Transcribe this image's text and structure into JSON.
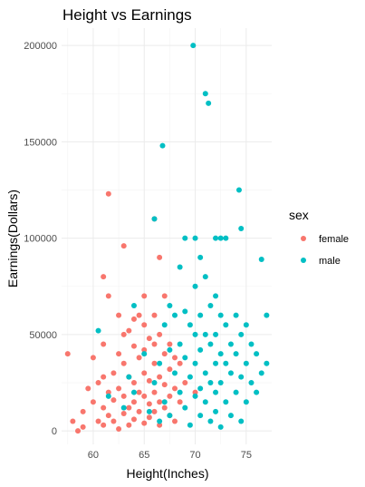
{
  "chart_data": {
    "type": "scatter",
    "title": "Height vs Earnings",
    "xlabel": "Height(Inches)",
    "ylabel": "Earnings(Dollars)",
    "xlim": [
      56.9,
      77.5
    ],
    "ylim": [
      -7000,
      209000
    ],
    "xticks": [
      60,
      65,
      70,
      75
    ],
    "yticks": [
      0,
      50000,
      100000,
      150000,
      200000
    ],
    "xtick_labels": [
      "60",
      "65",
      "70",
      "75"
    ],
    "ytick_labels": [
      "0",
      "50000",
      "100000",
      "150000",
      "200000"
    ],
    "grid": true,
    "legend": {
      "title": "sex",
      "position": "right"
    },
    "series": [
      {
        "name": "female",
        "color": "#f8766d",
        "points": [
          [
            57.5,
            40000
          ],
          [
            58,
            5000
          ],
          [
            58.5,
            0
          ],
          [
            59,
            2000
          ],
          [
            59,
            10000
          ],
          [
            59.5,
            22000
          ],
          [
            60,
            15000
          ],
          [
            60,
            38000
          ],
          [
            60.5,
            25000
          ],
          [
            60.5,
            5000
          ],
          [
            61,
            80000
          ],
          [
            61,
            45000
          ],
          [
            61,
            28000
          ],
          [
            61,
            12000
          ],
          [
            61,
            3000
          ],
          [
            61.5,
            123000
          ],
          [
            61.5,
            70000
          ],
          [
            61.5,
            20000
          ],
          [
            61.5,
            8000
          ],
          [
            62,
            30000
          ],
          [
            62,
            16000
          ],
          [
            62,
            5000
          ],
          [
            62.5,
            60000
          ],
          [
            62.5,
            40000
          ],
          [
            62.5,
            22000
          ],
          [
            62.5,
            1000
          ],
          [
            63,
            96000
          ],
          [
            63,
            50000
          ],
          [
            63,
            35000
          ],
          [
            63,
            18000
          ],
          [
            63,
            9000
          ],
          [
            63.5,
            52000
          ],
          [
            63.5,
            28000
          ],
          [
            63.5,
            12000
          ],
          [
            63.5,
            3000
          ],
          [
            64,
            58000
          ],
          [
            64,
            44000
          ],
          [
            64,
            25000
          ],
          [
            64,
            15000
          ],
          [
            64,
            6000
          ],
          [
            64.5,
            60000
          ],
          [
            64.5,
            38000
          ],
          [
            64.5,
            20000
          ],
          [
            64.5,
            10000
          ],
          [
            65,
            70000
          ],
          [
            65,
            55000
          ],
          [
            65,
            42000
          ],
          [
            65,
            30000
          ],
          [
            65,
            18000
          ],
          [
            65,
            4000
          ],
          [
            65.5,
            48000
          ],
          [
            65.5,
            26000
          ],
          [
            65.5,
            14000
          ],
          [
            65.5,
            7000
          ],
          [
            66,
            110000
          ],
          [
            66,
            60000
          ],
          [
            66,
            45000
          ],
          [
            66,
            35000
          ],
          [
            66,
            20000
          ],
          [
            66,
            10000
          ],
          [
            66.5,
            90000
          ],
          [
            66.5,
            50000
          ],
          [
            66.5,
            28000
          ],
          [
            66.5,
            15000
          ],
          [
            66.5,
            3000
          ],
          [
            67,
            70000
          ],
          [
            67,
            40000
          ],
          [
            67,
            24000
          ],
          [
            67,
            12000
          ],
          [
            67.5,
            45000
          ],
          [
            67.5,
            32000
          ],
          [
            67.5,
            18000
          ],
          [
            67.5,
            8000
          ],
          [
            68,
            38000
          ],
          [
            68,
            22000
          ],
          [
            68,
            5000
          ],
          [
            68.5,
            35000
          ],
          [
            68.5,
            15000
          ],
          [
            69,
            25000
          ],
          [
            70,
            20000
          ]
        ]
      },
      {
        "name": "male",
        "color": "#00bfc4",
        "points": [
          [
            60.5,
            52000
          ],
          [
            61.5,
            18000
          ],
          [
            63,
            12000
          ],
          [
            63.5,
            28000
          ],
          [
            64,
            65000
          ],
          [
            64,
            20000
          ],
          [
            65,
            40000
          ],
          [
            65.5,
            10000
          ],
          [
            66,
            110000
          ],
          [
            66,
            25000
          ],
          [
            66.5,
            35000
          ],
          [
            66.5,
            5000
          ],
          [
            66.8,
            148000
          ],
          [
            67,
            55000
          ],
          [
            67,
            15000
          ],
          [
            67.5,
            65000
          ],
          [
            67.5,
            42000
          ],
          [
            67.5,
            8000
          ],
          [
            68,
            60000
          ],
          [
            68,
            30000
          ],
          [
            68.5,
            85000
          ],
          [
            68.5,
            45000
          ],
          [
            68.5,
            20000
          ],
          [
            69,
            100000
          ],
          [
            69,
            62000
          ],
          [
            69,
            38000
          ],
          [
            69,
            12000
          ],
          [
            69.5,
            55000
          ],
          [
            69.5,
            28000
          ],
          [
            69.5,
            3000
          ],
          [
            69.8,
            200000
          ],
          [
            70,
            100000
          ],
          [
            70,
            75000
          ],
          [
            70,
            50000
          ],
          [
            70,
            35000
          ],
          [
            70,
            18000
          ],
          [
            70.5,
            90000
          ],
          [
            70.5,
            60000
          ],
          [
            70.5,
            42000
          ],
          [
            70.5,
            22000
          ],
          [
            70.5,
            8000
          ],
          [
            71,
            175000
          ],
          [
            71,
            80000
          ],
          [
            71,
            50000
          ],
          [
            71,
            30000
          ],
          [
            71,
            15000
          ],
          [
            71.3,
            170000
          ],
          [
            71.5,
            65000
          ],
          [
            71.5,
            45000
          ],
          [
            71.5,
            25000
          ],
          [
            71.5,
            5000
          ],
          [
            72,
            100000
          ],
          [
            72,
            70000
          ],
          [
            72,
            50000
          ],
          [
            72,
            35000
          ],
          [
            72,
            20000
          ],
          [
            72,
            10000
          ],
          [
            72.5,
            100000
          ],
          [
            72.5,
            60000
          ],
          [
            72.5,
            40000
          ],
          [
            72.5,
            25000
          ],
          [
            72.5,
            2000
          ],
          [
            73,
            100000
          ],
          [
            73,
            55000
          ],
          [
            73,
            35000
          ],
          [
            73,
            15000
          ],
          [
            73.5,
            45000
          ],
          [
            73.5,
            30000
          ],
          [
            73.5,
            8000
          ],
          [
            74,
            60000
          ],
          [
            74,
            40000
          ],
          [
            74,
            20000
          ],
          [
            74.3,
            125000
          ],
          [
            74.5,
            105000
          ],
          [
            74.5,
            50000
          ],
          [
            74.5,
            28000
          ],
          [
            74.5,
            5000
          ],
          [
            75,
            55000
          ],
          [
            75,
            35000
          ],
          [
            75,
            15000
          ],
          [
            75.5,
            45000
          ],
          [
            75.5,
            25000
          ],
          [
            76,
            40000
          ],
          [
            76,
            20000
          ],
          [
            76.5,
            89000
          ],
          [
            76.5,
            30000
          ],
          [
            77,
            60000
          ],
          [
            77,
            35000
          ]
        ]
      }
    ]
  }
}
